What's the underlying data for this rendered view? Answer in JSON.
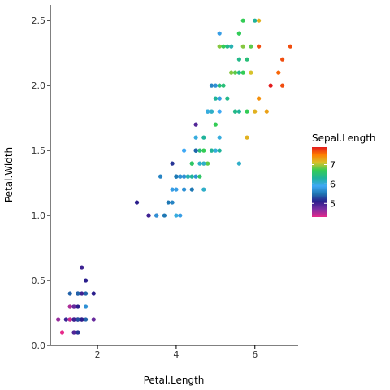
{
  "chart_data": {
    "type": "scatter",
    "title": "",
    "xlabel": "Petal.Length",
    "ylabel": "Petal.Width",
    "xlim": [
      0.8,
      7.1
    ],
    "ylim": [
      0,
      2.62
    ],
    "x_ticks": [
      {
        "value": 2,
        "label": "2"
      },
      {
        "value": 4,
        "label": "4"
      },
      {
        "value": 6,
        "label": "6"
      }
    ],
    "y_ticks": [
      {
        "value": 0.0,
        "label": "0.0"
      },
      {
        "value": 0.5,
        "label": "0.5"
      },
      {
        "value": 1.0,
        "label": "1.0"
      },
      {
        "value": 1.5,
        "label": "1.5"
      },
      {
        "value": 2.0,
        "label": "2.0"
      },
      {
        "value": 2.5,
        "label": "2.5"
      }
    ],
    "grid": false,
    "legend": {
      "title": "Sepal.Length",
      "placement": "right",
      "range": [
        4.3,
        7.9
      ],
      "labels": [
        {
          "value": 5,
          "label": "5"
        },
        {
          "value": 6,
          "label": "6"
        },
        {
          "value": 7,
          "label": "7"
        }
      ],
      "colors": [
        "#e7298a",
        "#7b2ea3",
        "#2a1e8c",
        "#1f78b4",
        "#3fa9f5",
        "#1fb39a",
        "#33cc55",
        "#d7c22b",
        "#ff7f00",
        "#e31a1c"
      ]
    },
    "points": [
      {
        "x": 1.4,
        "y": 0.2,
        "c": 5.1
      },
      {
        "x": 1.4,
        "y": 0.2,
        "c": 4.9
      },
      {
        "x": 1.3,
        "y": 0.2,
        "c": 4.7
      },
      {
        "x": 1.5,
        "y": 0.2,
        "c": 4.6
      },
      {
        "x": 1.4,
        "y": 0.2,
        "c": 5.0
      },
      {
        "x": 1.7,
        "y": 0.4,
        "c": 5.4
      },
      {
        "x": 1.4,
        "y": 0.3,
        "c": 4.6
      },
      {
        "x": 1.5,
        "y": 0.2,
        "c": 5.0
      },
      {
        "x": 1.4,
        "y": 0.2,
        "c": 4.4
      },
      {
        "x": 1.5,
        "y": 0.1,
        "c": 4.9
      },
      {
        "x": 1.5,
        "y": 0.2,
        "c": 5.4
      },
      {
        "x": 1.6,
        "y": 0.2,
        "c": 4.8
      },
      {
        "x": 1.4,
        "y": 0.1,
        "c": 4.8
      },
      {
        "x": 1.1,
        "y": 0.1,
        "c": 4.3
      },
      {
        "x": 1.2,
        "y": 0.2,
        "c": 5.8
      },
      {
        "x": 1.5,
        "y": 0.4,
        "c": 5.7
      },
      {
        "x": 1.3,
        "y": 0.4,
        "c": 5.4
      },
      {
        "x": 1.4,
        "y": 0.3,
        "c": 5.1
      },
      {
        "x": 1.7,
        "y": 0.3,
        "c": 5.7
      },
      {
        "x": 1.5,
        "y": 0.3,
        "c": 5.1
      },
      {
        "x": 1.7,
        "y": 0.2,
        "c": 5.4
      },
      {
        "x": 1.5,
        "y": 0.4,
        "c": 5.1
      },
      {
        "x": 1.0,
        "y": 0.2,
        "c": 4.6
      },
      {
        "x": 1.7,
        "y": 0.5,
        "c": 5.1
      },
      {
        "x": 1.9,
        "y": 0.2,
        "c": 4.8
      },
      {
        "x": 1.6,
        "y": 0.2,
        "c": 5.0
      },
      {
        "x": 1.6,
        "y": 0.4,
        "c": 5.0
      },
      {
        "x": 1.5,
        "y": 0.2,
        "c": 5.2
      },
      {
        "x": 1.4,
        "y": 0.2,
        "c": 5.2
      },
      {
        "x": 1.6,
        "y": 0.2,
        "c": 4.7
      },
      {
        "x": 1.6,
        "y": 0.2,
        "c": 4.8
      },
      {
        "x": 1.5,
        "y": 0.4,
        "c": 5.4
      },
      {
        "x": 1.5,
        "y": 0.1,
        "c": 5.2
      },
      {
        "x": 1.4,
        "y": 0.2,
        "c": 5.5
      },
      {
        "x": 1.5,
        "y": 0.2,
        "c": 4.9
      },
      {
        "x": 1.2,
        "y": 0.2,
        "c": 5.0
      },
      {
        "x": 1.3,
        "y": 0.2,
        "c": 5.5
      },
      {
        "x": 1.4,
        "y": 0.1,
        "c": 4.9
      },
      {
        "x": 1.3,
        "y": 0.2,
        "c": 4.4
      },
      {
        "x": 1.5,
        "y": 0.2,
        "c": 5.1
      },
      {
        "x": 1.3,
        "y": 0.3,
        "c": 5.0
      },
      {
        "x": 1.3,
        "y": 0.3,
        "c": 4.5
      },
      {
        "x": 1.3,
        "y": 0.2,
        "c": 4.4
      },
      {
        "x": 1.6,
        "y": 0.6,
        "c": 5.0
      },
      {
        "x": 1.9,
        "y": 0.4,
        "c": 5.1
      },
      {
        "x": 1.4,
        "y": 0.3,
        "c": 4.8
      },
      {
        "x": 1.6,
        "y": 0.2,
        "c": 5.1
      },
      {
        "x": 1.4,
        "y": 0.2,
        "c": 4.6
      },
      {
        "x": 1.5,
        "y": 0.2,
        "c": 5.3
      },
      {
        "x": 1.4,
        "y": 0.2,
        "c": 5.0
      },
      {
        "x": 4.7,
        "y": 1.4,
        "c": 7.0
      },
      {
        "x": 4.5,
        "y": 1.5,
        "c": 6.4
      },
      {
        "x": 4.9,
        "y": 1.5,
        "c": 6.9
      },
      {
        "x": 4.0,
        "y": 1.3,
        "c": 5.5
      },
      {
        "x": 4.6,
        "y": 1.5,
        "c": 6.5
      },
      {
        "x": 4.5,
        "y": 1.3,
        "c": 5.7
      },
      {
        "x": 4.7,
        "y": 1.6,
        "c": 6.3
      },
      {
        "x": 3.3,
        "y": 1.0,
        "c": 4.9
      },
      {
        "x": 4.6,
        "y": 1.3,
        "c": 6.6
      },
      {
        "x": 3.9,
        "y": 1.4,
        "c": 5.2
      },
      {
        "x": 3.5,
        "y": 1.0,
        "c": 5.0
      },
      {
        "x": 4.2,
        "y": 1.5,
        "c": 5.9
      },
      {
        "x": 4.0,
        "y": 1.0,
        "c": 6.0
      },
      {
        "x": 4.7,
        "y": 1.4,
        "c": 6.1
      },
      {
        "x": 3.6,
        "y": 1.3,
        "c": 5.6
      },
      {
        "x": 4.4,
        "y": 1.4,
        "c": 6.7
      },
      {
        "x": 4.5,
        "y": 1.5,
        "c": 5.6
      },
      {
        "x": 4.1,
        "y": 1.0,
        "c": 5.8
      },
      {
        "x": 4.5,
        "y": 1.5,
        "c": 6.2
      },
      {
        "x": 3.9,
        "y": 1.1,
        "c": 5.6
      },
      {
        "x": 4.8,
        "y": 1.8,
        "c": 5.9
      },
      {
        "x": 4.0,
        "y": 1.3,
        "c": 6.1
      },
      {
        "x": 4.9,
        "y": 1.5,
        "c": 6.3
      },
      {
        "x": 4.7,
        "y": 1.2,
        "c": 6.1
      },
      {
        "x": 4.3,
        "y": 1.3,
        "c": 6.4
      },
      {
        "x": 4.4,
        "y": 1.4,
        "c": 6.6
      },
      {
        "x": 4.8,
        "y": 1.4,
        "c": 6.8
      },
      {
        "x": 5.0,
        "y": 1.7,
        "c": 6.7
      },
      {
        "x": 4.5,
        "y": 1.5,
        "c": 6.0
      },
      {
        "x": 3.5,
        "y": 1.0,
        "c": 5.7
      },
      {
        "x": 3.8,
        "y": 1.1,
        "c": 5.5
      },
      {
        "x": 3.7,
        "y": 1.0,
        "c": 5.5
      },
      {
        "x": 3.9,
        "y": 1.2,
        "c": 5.8
      },
      {
        "x": 5.1,
        "y": 1.6,
        "c": 6.0
      },
      {
        "x": 4.5,
        "y": 1.5,
        "c": 5.4
      },
      {
        "x": 4.5,
        "y": 1.6,
        "c": 6.0
      },
      {
        "x": 4.7,
        "y": 1.5,
        "c": 6.7
      },
      {
        "x": 4.4,
        "y": 1.3,
        "c": 6.3
      },
      {
        "x": 4.1,
        "y": 1.3,
        "c": 5.6
      },
      {
        "x": 4.0,
        "y": 1.3,
        "c": 5.5
      },
      {
        "x": 4.4,
        "y": 1.2,
        "c": 5.5
      },
      {
        "x": 4.6,
        "y": 1.4,
        "c": 6.1
      },
      {
        "x": 4.0,
        "y": 1.2,
        "c": 5.8
      },
      {
        "x": 3.3,
        "y": 1.0,
        "c": 5.0
      },
      {
        "x": 4.2,
        "y": 1.3,
        "c": 5.6
      },
      {
        "x": 4.2,
        "y": 1.2,
        "c": 5.7
      },
      {
        "x": 4.2,
        "y": 1.3,
        "c": 5.7
      },
      {
        "x": 4.3,
        "y": 1.3,
        "c": 6.2
      },
      {
        "x": 3.0,
        "y": 1.1,
        "c": 5.1
      },
      {
        "x": 4.1,
        "y": 1.3,
        "c": 5.7
      },
      {
        "x": 6.0,
        "y": 2.5,
        "c": 6.3
      },
      {
        "x": 5.1,
        "y": 1.9,
        "c": 5.8
      },
      {
        "x": 5.9,
        "y": 2.1,
        "c": 7.1
      },
      {
        "x": 5.6,
        "y": 1.8,
        "c": 6.3
      },
      {
        "x": 5.8,
        "y": 2.2,
        "c": 6.5
      },
      {
        "x": 6.6,
        "y": 2.1,
        "c": 7.6
      },
      {
        "x": 4.5,
        "y": 1.7,
        "c": 4.9
      },
      {
        "x": 6.3,
        "y": 1.8,
        "c": 7.3
      },
      {
        "x": 5.8,
        "y": 1.8,
        "c": 6.7
      },
      {
        "x": 6.1,
        "y": 2.5,
        "c": 7.2
      },
      {
        "x": 5.1,
        "y": 2.0,
        "c": 6.5
      },
      {
        "x": 5.3,
        "y": 1.9,
        "c": 6.4
      },
      {
        "x": 5.5,
        "y": 2.1,
        "c": 6.8
      },
      {
        "x": 5.0,
        "y": 2.0,
        "c": 5.7
      },
      {
        "x": 5.1,
        "y": 2.4,
        "c": 5.8
      },
      {
        "x": 5.3,
        "y": 2.3,
        "c": 6.4
      },
      {
        "x": 5.5,
        "y": 1.8,
        "c": 6.5
      },
      {
        "x": 6.7,
        "y": 2.2,
        "c": 7.7
      },
      {
        "x": 6.9,
        "y": 2.3,
        "c": 7.7
      },
      {
        "x": 5.0,
        "y": 1.5,
        "c": 6.0
      },
      {
        "x": 5.7,
        "y": 2.3,
        "c": 6.9
      },
      {
        "x": 4.9,
        "y": 2.0,
        "c": 5.6
      },
      {
        "x": 6.7,
        "y": 2.0,
        "c": 7.7
      },
      {
        "x": 4.9,
        "y": 1.8,
        "c": 6.3
      },
      {
        "x": 5.7,
        "y": 2.1,
        "c": 6.7
      },
      {
        "x": 6.0,
        "y": 1.8,
        "c": 7.2
      },
      {
        "x": 4.8,
        "y": 1.8,
        "c": 6.2
      },
      {
        "x": 4.9,
        "y": 1.8,
        "c": 6.1
      },
      {
        "x": 5.6,
        "y": 2.1,
        "c": 6.4
      },
      {
        "x": 5.8,
        "y": 1.6,
        "c": 7.2
      },
      {
        "x": 6.1,
        "y": 1.9,
        "c": 7.4
      },
      {
        "x": 6.4,
        "y": 2.0,
        "c": 7.9
      },
      {
        "x": 5.6,
        "y": 2.2,
        "c": 6.4
      },
      {
        "x": 5.1,
        "y": 1.5,
        "c": 6.3
      },
      {
        "x": 5.6,
        "y": 1.4,
        "c": 6.1
      },
      {
        "x": 6.1,
        "y": 2.3,
        "c": 7.7
      },
      {
        "x": 5.6,
        "y": 2.4,
        "c": 6.3
      },
      {
        "x": 5.5,
        "y": 1.8,
        "c": 6.4
      },
      {
        "x": 4.8,
        "y": 1.8,
        "c": 6.0
      },
      {
        "x": 5.4,
        "y": 2.1,
        "c": 6.9
      },
      {
        "x": 5.6,
        "y": 2.4,
        "c": 6.7
      },
      {
        "x": 5.1,
        "y": 2.3,
        "c": 6.9
      },
      {
        "x": 5.1,
        "y": 1.9,
        "c": 5.8
      },
      {
        "x": 5.9,
        "y": 2.3,
        "c": 6.8
      },
      {
        "x": 5.7,
        "y": 2.5,
        "c": 6.7
      },
      {
        "x": 5.2,
        "y": 2.3,
        "c": 6.7
      },
      {
        "x": 5.0,
        "y": 1.9,
        "c": 6.3
      },
      {
        "x": 5.2,
        "y": 2.0,
        "c": 6.5
      },
      {
        "x": 5.4,
        "y": 2.3,
        "c": 6.2
      },
      {
        "x": 5.1,
        "y": 1.8,
        "c": 5.9
      }
    ]
  }
}
